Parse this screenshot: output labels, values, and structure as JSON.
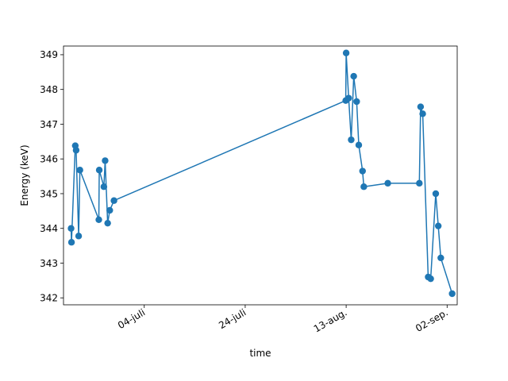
{
  "chart_data": {
    "type": "line",
    "title": "",
    "xlabel": "time",
    "ylabel": "Energy (keV)",
    "x_type": "date",
    "xlim": [
      "2023-06-18",
      "2023-09-04"
    ],
    "ylim": [
      341.8,
      349.25
    ],
    "x_ticks": [
      {
        "date": "2023-07-04",
        "label": "04-juli"
      },
      {
        "date": "2023-07-24",
        "label": "24-juli"
      },
      {
        "date": "2023-08-13",
        "label": "13-aug."
      },
      {
        "date": "2023-09-02",
        "label": "02-sep."
      }
    ],
    "y_ticks": [
      342,
      343,
      344,
      345,
      346,
      347,
      348,
      349
    ],
    "grid": false,
    "legend": "none",
    "series": [
      {
        "color": "#1f77b4",
        "marker": "circle",
        "points": [
          {
            "x": "2023-06-19T12:00",
            "y": 344.0
          },
          {
            "x": "2023-06-19T14:00",
            "y": 343.6
          },
          {
            "x": "2023-06-20T08:00",
            "y": 346.38
          },
          {
            "x": "2023-06-20T12:00",
            "y": 346.25
          },
          {
            "x": "2023-06-21T00:00",
            "y": 343.78
          },
          {
            "x": "2023-06-21T06:00",
            "y": 345.68
          },
          {
            "x": "2023-06-25T00:00",
            "y": 344.25
          },
          {
            "x": "2023-06-25T02:00",
            "y": 345.68
          },
          {
            "x": "2023-06-26T00:00",
            "y": 345.2
          },
          {
            "x": "2023-06-26T06:00",
            "y": 345.95
          },
          {
            "x": "2023-06-26T18:00",
            "y": 344.15
          },
          {
            "x": "2023-06-27T04:00",
            "y": 344.52
          },
          {
            "x": "2023-06-28T00:00",
            "y": 344.8
          },
          {
            "x": "2023-08-12T22:00",
            "y": 347.68
          },
          {
            "x": "2023-08-13T00:00",
            "y": 349.05
          },
          {
            "x": "2023-08-13T12:00",
            "y": 347.75
          },
          {
            "x": "2023-08-14T00:00",
            "y": 346.55
          },
          {
            "x": "2023-08-14T12:00",
            "y": 348.38
          },
          {
            "x": "2023-08-15T02:00",
            "y": 347.65
          },
          {
            "x": "2023-08-15T12:00",
            "y": 346.4
          },
          {
            "x": "2023-08-16T06:00",
            "y": 345.65
          },
          {
            "x": "2023-08-16T12:00",
            "y": 345.2
          },
          {
            "x": "2023-08-21T06:00",
            "y": 345.3
          },
          {
            "x": "2023-08-27T12:00",
            "y": 345.3
          },
          {
            "x": "2023-08-27T18:00",
            "y": 347.5
          },
          {
            "x": "2023-08-28T04:00",
            "y": 347.3
          },
          {
            "x": "2023-08-29T06:00",
            "y": 342.6
          },
          {
            "x": "2023-08-29T18:00",
            "y": 342.55
          },
          {
            "x": "2023-08-30T18:00",
            "y": 345.0
          },
          {
            "x": "2023-08-31T06:00",
            "y": 344.07
          },
          {
            "x": "2023-08-31T18:00",
            "y": 343.15
          },
          {
            "x": "2023-09-03T00:00",
            "y": 342.12
          }
        ]
      }
    ]
  }
}
